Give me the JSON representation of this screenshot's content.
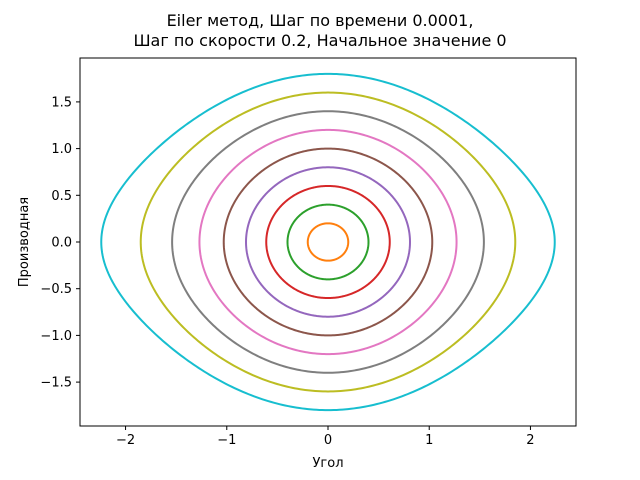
{
  "chart_data": {
    "type": "line",
    "title_lines": [
      "Eiler метод, Шаг по времени 0.0001,",
      "Шаг по скорости 0.2, Начальное значение 0"
    ],
    "xlabel": "Угол",
    "ylabel": "Производная",
    "xlim": [
      -2.45,
      2.45
    ],
    "ylim": [
      -1.97,
      1.97
    ],
    "xticks": [
      -2,
      -1,
      0,
      1,
      2
    ],
    "xtick_labels": [
      "−2",
      "−1",
      "0",
      "1",
      "2"
    ],
    "yticks": [
      -1.5,
      -1.0,
      -0.5,
      0.0,
      0.5,
      1.0,
      1.5
    ],
    "ytick_labels": [
      "−1.5",
      "−1.0",
      "−0.5",
      "0.0",
      "0.5",
      "1.0",
      "1.5"
    ],
    "grid": false,
    "legend": "none",
    "series": [
      {
        "max_velocity": 0.2,
        "max_angle": 0.2,
        "color": "#ff7f0e"
      },
      {
        "max_velocity": 0.4,
        "max_angle": 0.4,
        "color": "#2ca02c"
      },
      {
        "max_velocity": 0.6,
        "max_angle": 0.61,
        "color": "#d62728"
      },
      {
        "max_velocity": 0.8,
        "max_angle": 0.81,
        "color": "#9467bd"
      },
      {
        "max_velocity": 1.0,
        "max_angle": 1.03,
        "color": "#8c564b"
      },
      {
        "max_velocity": 1.2,
        "max_angle": 1.27,
        "color": "#e377c2"
      },
      {
        "max_velocity": 1.4,
        "max_angle": 1.54,
        "color": "#7f7f7f"
      },
      {
        "max_velocity": 1.6,
        "max_angle": 1.85,
        "color": "#bcbd22"
      },
      {
        "max_velocity": 1.8,
        "max_angle": 2.24,
        "color": "#17becf"
      }
    ]
  }
}
